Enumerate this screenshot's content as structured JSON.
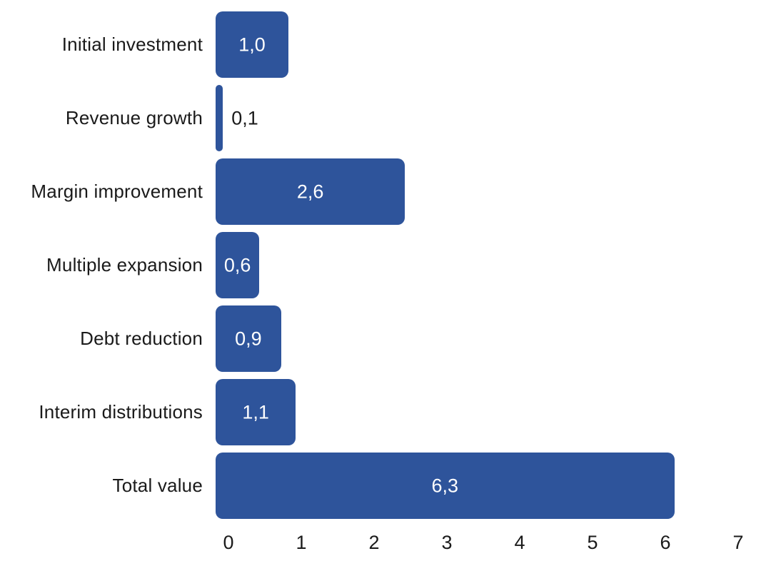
{
  "chart_data": {
    "type": "bar",
    "orientation": "horizontal",
    "title": "",
    "xlabel": "",
    "ylabel": "",
    "categories": [
      "Initial investment",
      "Revenue growth",
      "Margin improvement",
      "Multiple expansion",
      "Debt reduction",
      "Interim distributions",
      "Total value"
    ],
    "values": [
      1.0,
      0.1,
      2.6,
      0.6,
      0.9,
      1.1,
      6.3
    ],
    "value_labels": [
      "1,0",
      "0,1",
      "2,6",
      "0,6",
      "0,9",
      "1,1",
      "6,3"
    ],
    "xlim": [
      0,
      7
    ],
    "x_ticks": [
      "0",
      "1",
      "2",
      "3",
      "4",
      "5",
      "6",
      "7"
    ],
    "grid": false,
    "legend": false,
    "colors": {
      "bar": "#2E549B",
      "value_label_inside": "#FFFFFF",
      "value_label_outside": "#1A1A1A",
      "axis_text": "#1A1A1A",
      "background": "#FFFFFF"
    }
  }
}
